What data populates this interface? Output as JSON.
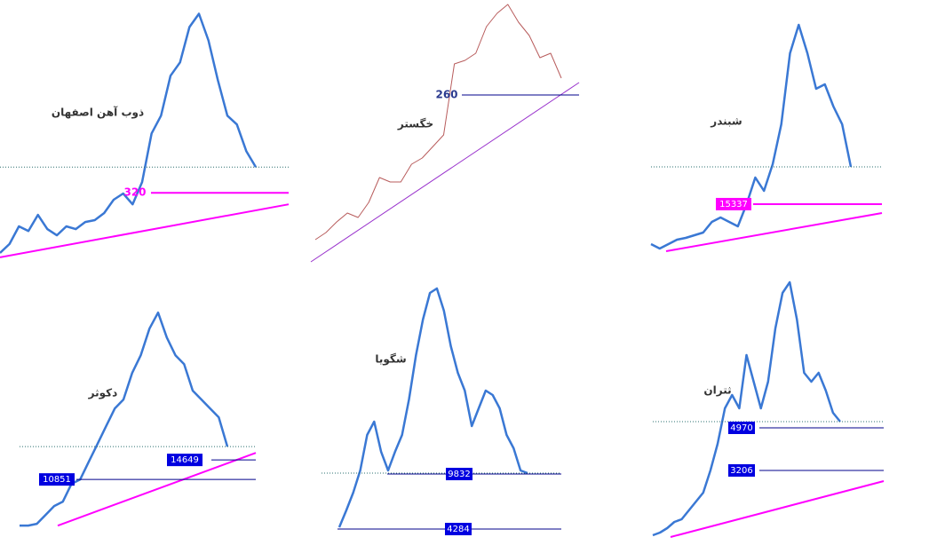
{
  "chart_data": [
    {
      "type": "line",
      "title": "ذوب آهن اصفهان",
      "color": "#3a78d4",
      "ylim": [
        0,
        1160
      ],
      "values": [
        58,
        97,
        174,
        154,
        224,
        162,
        135,
        174,
        162,
        193,
        201,
        232,
        290,
        317,
        270,
        367,
        579,
        656,
        830,
        888,
        1042,
        1100,
        984,
        811,
        656,
        618,
        502,
        432
      ],
      "levels": [
        320
      ],
      "level_color": "#ff00ff",
      "trend": [
        39,
        270
      ],
      "trend_color": "#ff00ff"
    },
    {
      "type": "line",
      "title": "خگستر",
      "color": "#b85c5c",
      "ylim": [
        67,
        367
      ],
      "values": [
        97,
        105,
        117,
        127,
        122,
        139,
        167,
        162,
        162,
        182,
        189,
        202,
        215,
        295,
        299,
        307,
        337,
        352,
        362,
        342,
        327,
        302,
        307,
        279
      ],
      "levels": [
        260
      ],
      "level_color": "#00008b",
      "trend": [
        72,
        274
      ],
      "trend_color": "#9932cc"
    },
    {
      "type": "line",
      "title": "شبندر",
      "color": "#3a78d4",
      "ylim": [
        0,
        63500
      ],
      "values": [
        5475,
        4380,
        5475,
        6570,
        7008,
        7665,
        8322,
        10950,
        12045,
        10950,
        9855,
        15330,
        21900,
        18615,
        25185,
        35040,
        52560,
        59568,
        52560,
        43800,
        44895,
        39420,
        35040,
        24528
      ],
      "levels": [
        15337
      ],
      "level_color": "#ff00ff",
      "trend": [
        3723,
        13140
      ],
      "trend_color": "#ff00ff"
    },
    {
      "type": "line",
      "title": "دکوثر",
      "color": "#3a78d4",
      "ylim": [
        0,
        45400
      ],
      "values": [
        1877,
        1877,
        2222,
        3948,
        5674,
        6537,
        9989,
        10852,
        14304,
        17756,
        21208,
        24660,
        26386,
        31564,
        35016,
        40194,
        43301,
        38468,
        35016,
        33290,
        28112,
        26386,
        24660,
        22934,
        17238
      ],
      "levels": [
        14649,
        10851
      ],
      "level_color": "#00008b",
      "trend": [
        1877,
        16030
      ],
      "trend_color": "#ff00ff"
    },
    {
      "type": "line",
      "title": "شگویا",
      "color": "#3a78d4",
      "ylim": [
        3480,
        30780
      ],
      "values": [
        4463,
        6164,
        7954,
        10191,
        13771,
        15114,
        12081,
        10191,
        12081,
        13771,
        17351,
        21826,
        25406,
        28091,
        28538,
        26301,
        22721,
        20036,
        18246,
        14666,
        16456,
        18246,
        17800,
        16456,
        13771,
        12429,
        10191,
        9923
      ],
      "levels": [
        9832,
        4284
      ],
      "level_color": "#00008b"
    },
    {
      "type": "line",
      "title": "ثتران",
      "color": "#3a78d4",
      "ylim": [
        450,
        11290
      ],
      "values": [
        524,
        634,
        817,
        1075,
        1185,
        1552,
        1920,
        2287,
        3206,
        4309,
        5779,
        6330,
        5779,
        7984,
        6881,
        5779,
        6881,
        9086,
        10556,
        10997,
        9454,
        7249,
        6881,
        7249,
        6514,
        5595,
        5227
      ],
      "levels": [
        4970,
        3206
      ],
      "level_color": "#00008b",
      "trend": [
        450,
        2765
      ],
      "trend_color": "#ff00ff"
    }
  ]
}
